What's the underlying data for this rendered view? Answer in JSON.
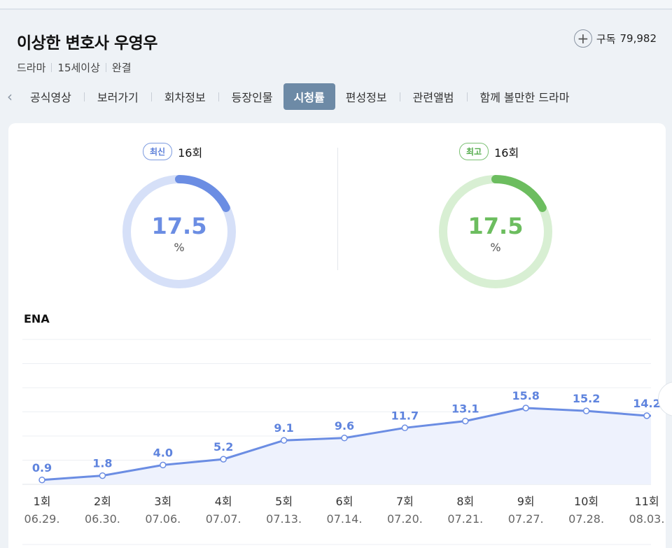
{
  "header": {
    "title": "이상한 변호사 우영우",
    "meta": [
      "드라마",
      "15세이상",
      "완결"
    ],
    "subscribe_label": "구독",
    "subscribe_count": "79,982"
  },
  "tabs": [
    "공식영상",
    "보러가기",
    "회차정보",
    "등장인물",
    "시청률",
    "편성정보",
    "관련앨범",
    "함께 볼만한 드라마"
  ],
  "active_tab": "시청률",
  "ratings": {
    "latest": {
      "badge": "최신",
      "episode": "16회",
      "value": "17.5",
      "unit": "%"
    },
    "highest": {
      "badge": "최고",
      "episode": "16회",
      "value": "17.5",
      "unit": "%"
    }
  },
  "channel": "ENA",
  "colors": {
    "blue": "#6b8de3",
    "green": "#6cbd5f",
    "tab_active": "#6d8aa6"
  },
  "chart_data": {
    "type": "area",
    "x": [
      "1회",
      "2회",
      "3회",
      "4회",
      "5회",
      "6회",
      "7회",
      "8회",
      "9회",
      "10회",
      "11회"
    ],
    "dates": [
      "06.29.",
      "06.30.",
      "07.06.",
      "07.07.",
      "07.13.",
      "07.14.",
      "07.20.",
      "07.21.",
      "07.27.",
      "07.28.",
      "08.03."
    ],
    "values": [
      0.9,
      1.8,
      4.0,
      5.2,
      9.1,
      9.6,
      11.7,
      13.1,
      15.8,
      15.2,
      14.2
    ],
    "value_labels": [
      "0.9",
      "1.8",
      "4.0",
      "5.2",
      "9.1",
      "9.6",
      "11.7",
      "13.1",
      "15.8",
      "15.2",
      "14.2"
    ],
    "ylim": [
      0,
      30
    ],
    "grid": true
  }
}
